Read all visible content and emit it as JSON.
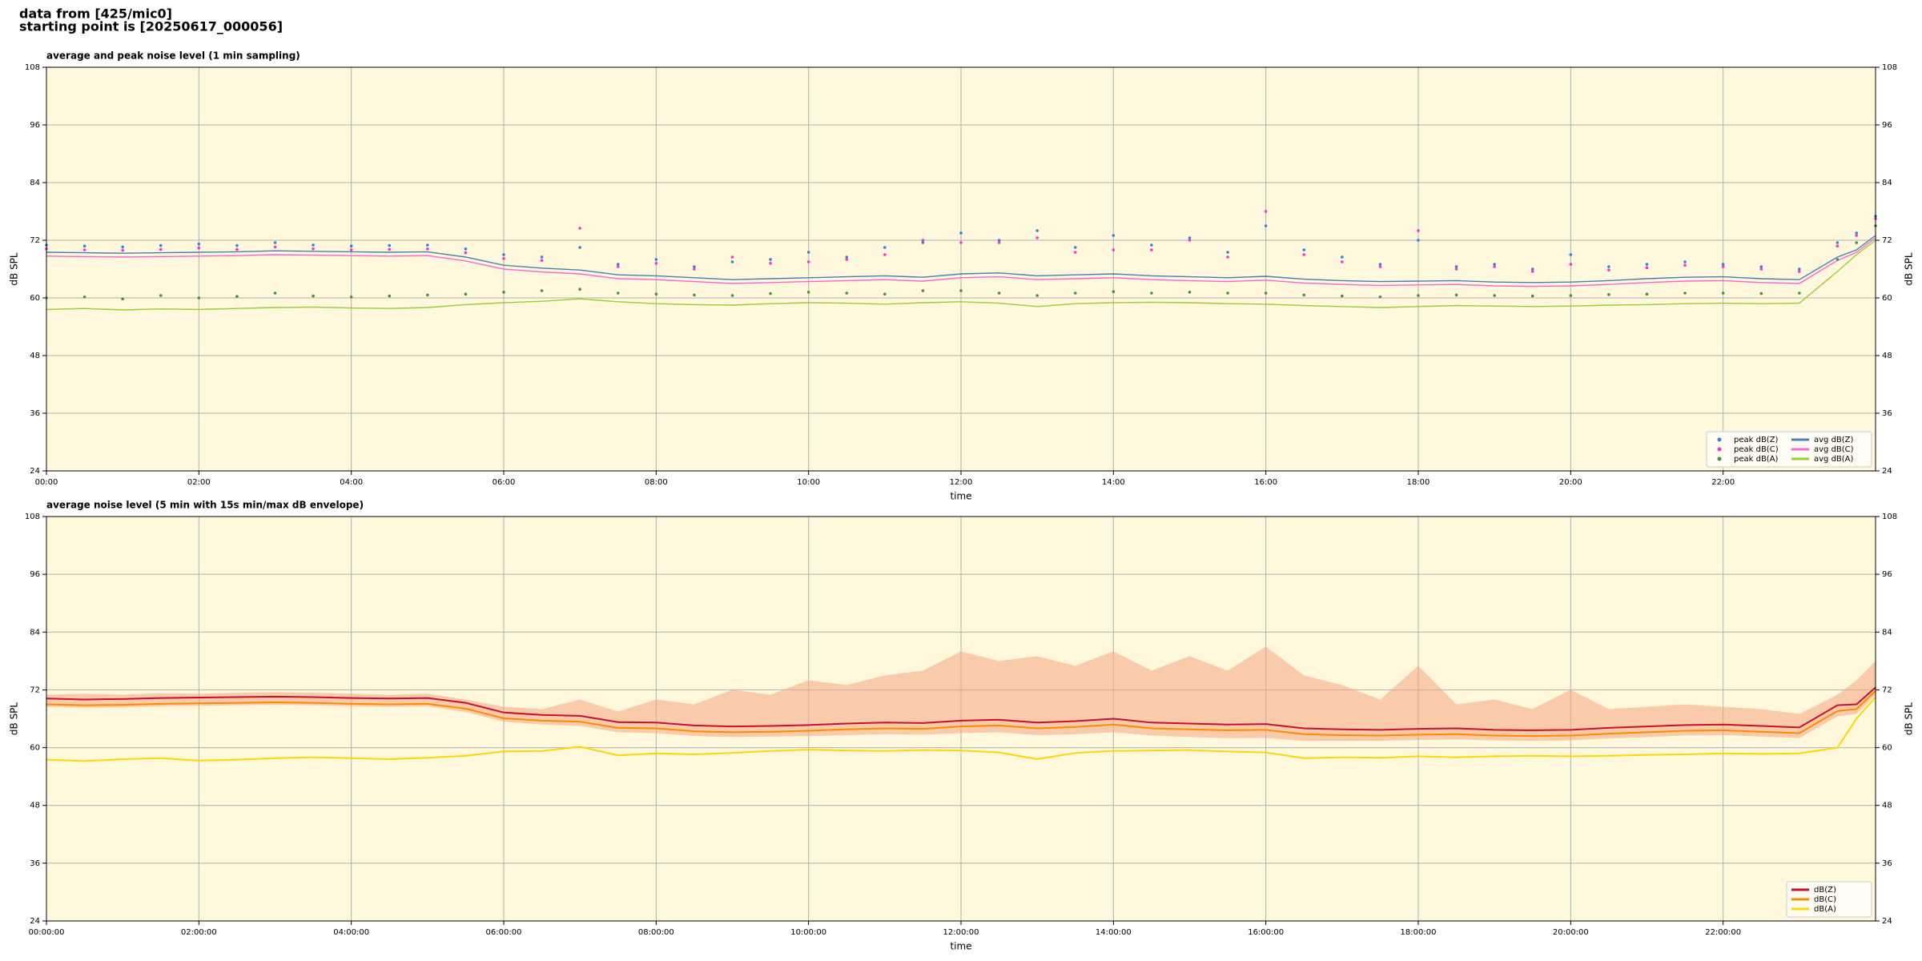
{
  "header": {
    "lines": [
      "data from [425/mic0]",
      "starting point is [20250617_000056]"
    ]
  },
  "chart_data": [
    {
      "type": "line",
      "title": "average and peak noise level (1 min sampling)",
      "xlabel": "time",
      "ylabel": "dB SPL",
      "xlim": [
        0,
        24
      ],
      "ylim": [
        24,
        108
      ],
      "xticks": [
        {
          "value": 0,
          "label": "00:00"
        },
        {
          "value": 2,
          "label": "02:00"
        },
        {
          "value": 4,
          "label": "04:00"
        },
        {
          "value": 6,
          "label": "06:00"
        },
        {
          "value": 8,
          "label": "08:00"
        },
        {
          "value": 10,
          "label": "10:00"
        },
        {
          "value": 12,
          "label": "12:00"
        },
        {
          "value": 14,
          "label": "14:00"
        },
        {
          "value": 16,
          "label": "16:00"
        },
        {
          "value": 18,
          "label": "18:00"
        },
        {
          "value": 20,
          "label": "20:00"
        },
        {
          "value": 22,
          "label": "22:00"
        }
      ],
      "yticks": [
        24,
        36,
        48,
        60,
        72,
        84,
        96,
        108
      ],
      "grid": true,
      "legend": "lower right",
      "legend_columns": 2,
      "background": "#fff8dc",
      "x": [
        0,
        0.5,
        1,
        1.5,
        2,
        2.5,
        3,
        3.5,
        4,
        4.5,
        5,
        5.5,
        6,
        6.5,
        7,
        7.5,
        8,
        8.5,
        9,
        9.5,
        10,
        10.5,
        11,
        11.5,
        12,
        12.5,
        13,
        13.5,
        14,
        14.5,
        15,
        15.5,
        16,
        16.5,
        17,
        17.5,
        18,
        18.5,
        19,
        19.5,
        20,
        20.5,
        21,
        21.5,
        22,
        22.5,
        23,
        23.5,
        23.75,
        24
      ],
      "series": [
        {
          "name": "peak dB(Z)",
          "color": "#3a7fd5",
          "style": "dots",
          "values": [
            71.0,
            70.8,
            70.6,
            70.9,
            71.2,
            70.9,
            71.5,
            71.0,
            70.8,
            70.9,
            71.0,
            70.2,
            69.0,
            68.5,
            70.5,
            67.0,
            68.0,
            66.5,
            67.5,
            68.0,
            69.5,
            68.5,
            70.5,
            71.5,
            73.5,
            72.0,
            74.0,
            70.5,
            73.0,
            71.0,
            72.5,
            69.5,
            75.0,
            70.0,
            68.5,
            67.0,
            72.0,
            66.5,
            67.0,
            66.0,
            69.0,
            66.5,
            67.0,
            67.5,
            67.0,
            66.5,
            66.0,
            71.5,
            73.5,
            77.0
          ]
        },
        {
          "name": "peak dB(C)",
          "color": "#ff33cc",
          "style": "dots",
          "values": [
            70.2,
            70.0,
            69.9,
            70.1,
            70.4,
            70.1,
            70.6,
            70.2,
            70.0,
            70.1,
            70.2,
            69.4,
            68.2,
            67.8,
            74.5,
            66.5,
            67.2,
            66.0,
            68.5,
            67.2,
            67.5,
            68.0,
            69.0,
            72.0,
            71.5,
            71.5,
            72.5,
            69.5,
            70.0,
            70.0,
            72.0,
            68.5,
            78.0,
            69.0,
            67.5,
            66.5,
            74.0,
            66.0,
            66.5,
            65.5,
            67.0,
            65.8,
            66.3,
            66.8,
            66.5,
            66.0,
            65.5,
            70.8,
            73.0,
            76.5
          ]
        },
        {
          "name": "peak dB(A)",
          "color": "#4f8f3a",
          "style": "dots",
          "values": [
            60.0,
            60.2,
            59.8,
            60.5,
            60.0,
            60.3,
            61.0,
            60.4,
            60.2,
            60.4,
            60.6,
            60.8,
            61.2,
            61.5,
            61.8,
            61.0,
            60.8,
            60.6,
            60.5,
            60.9,
            61.2,
            61.0,
            60.8,
            61.5,
            61.5,
            61.0,
            60.5,
            61.0,
            61.3,
            61.0,
            61.2,
            61.0,
            61.0,
            60.6,
            60.4,
            60.2,
            60.5,
            60.6,
            60.5,
            60.4,
            60.5,
            60.7,
            60.8,
            61.0,
            61.0,
            60.9,
            61.0,
            68.0,
            71.5,
            75.0
          ]
        },
        {
          "name": "avg dB(Z)",
          "color": "#4a7fb0",
          "style": "line",
          "values": [
            69.5,
            69.4,
            69.3,
            69.4,
            69.5,
            69.6,
            69.8,
            69.7,
            69.6,
            69.5,
            69.6,
            68.5,
            66.8,
            66.2,
            65.8,
            64.8,
            64.6,
            64.2,
            63.8,
            64.0,
            64.2,
            64.4,
            64.6,
            64.3,
            65.0,
            65.2,
            64.6,
            64.8,
            65.0,
            64.6,
            64.4,
            64.2,
            64.5,
            63.9,
            63.6,
            63.4,
            63.5,
            63.6,
            63.3,
            63.2,
            63.3,
            63.6,
            64.0,
            64.3,
            64.4,
            64.0,
            63.8,
            68.5,
            70.0,
            73.0
          ]
        },
        {
          "name": "avg dB(C)",
          "color": "#ff66cc",
          "style": "line",
          "values": [
            68.7,
            68.6,
            68.5,
            68.6,
            68.7,
            68.8,
            69.0,
            68.9,
            68.8,
            68.7,
            68.8,
            67.7,
            66.0,
            65.4,
            65.0,
            64.0,
            63.8,
            63.4,
            63.0,
            63.2,
            63.4,
            63.6,
            63.8,
            63.5,
            64.2,
            64.4,
            63.8,
            64.0,
            64.2,
            63.8,
            63.6,
            63.4,
            63.7,
            63.1,
            62.8,
            62.6,
            62.7,
            62.8,
            62.5,
            62.4,
            62.5,
            62.8,
            63.2,
            63.5,
            63.6,
            63.2,
            63.0,
            67.8,
            69.5,
            72.5
          ]
        },
        {
          "name": "avg dB(A)",
          "color": "#9acd32",
          "style": "line",
          "values": [
            57.6,
            57.8,
            57.5,
            57.7,
            57.6,
            57.8,
            58.0,
            58.1,
            57.9,
            57.8,
            58.0,
            58.6,
            59.0,
            59.3,
            59.8,
            59.2,
            58.8,
            58.6,
            58.5,
            58.8,
            59.0,
            58.9,
            58.7,
            59.0,
            59.2,
            58.9,
            58.2,
            58.8,
            59.0,
            59.1,
            59.0,
            58.8,
            58.7,
            58.4,
            58.2,
            58.0,
            58.2,
            58.4,
            58.3,
            58.2,
            58.3,
            58.5,
            58.6,
            58.8,
            58.9,
            58.8,
            58.9,
            65.5,
            69.0,
            72.0
          ]
        }
      ]
    },
    {
      "type": "line",
      "title": "average noise level (5 min with 15s min/max dB envelope)",
      "xlabel": "time",
      "ylabel": "dB SPL",
      "xlim": [
        0,
        24
      ],
      "ylim": [
        24,
        108
      ],
      "xticks": [
        {
          "value": 0,
          "label": "00:00:00"
        },
        {
          "value": 2,
          "label": "02:00:00"
        },
        {
          "value": 4,
          "label": "04:00:00"
        },
        {
          "value": 6,
          "label": "06:00:00"
        },
        {
          "value": 8,
          "label": "08:00:00"
        },
        {
          "value": 10,
          "label": "10:00:00"
        },
        {
          "value": 12,
          "label": "12:00:00"
        },
        {
          "value": 14,
          "label": "14:00:00"
        },
        {
          "value": 16,
          "label": "16:00:00"
        },
        {
          "value": 18,
          "label": "18:00:00"
        },
        {
          "value": 20,
          "label": "20:00:00"
        },
        {
          "value": 22,
          "label": "22:00:00"
        }
      ],
      "yticks": [
        24,
        36,
        48,
        60,
        72,
        84,
        96,
        108
      ],
      "grid": true,
      "legend": "lower right",
      "legend_columns": 1,
      "background": "#fff8dc",
      "x": [
        0,
        0.5,
        1,
        1.5,
        2,
        2.5,
        3,
        3.5,
        4,
        4.5,
        5,
        5.5,
        6,
        6.5,
        7,
        7.5,
        8,
        8.5,
        9,
        9.5,
        10,
        10.5,
        11,
        11.5,
        12,
        12.5,
        13,
        13.5,
        14,
        14.5,
        15,
        15.5,
        16,
        16.5,
        17,
        17.5,
        18,
        18.5,
        19,
        19.5,
        20,
        20.5,
        21,
        21.5,
        22,
        22.5,
        23,
        23.5,
        23.75,
        24
      ],
      "envelope": {
        "color": "#f4a582",
        "low": [
          68.5,
          68.3,
          68.4,
          68.6,
          68.7,
          68.8,
          68.9,
          68.8,
          68.6,
          68.5,
          68.6,
          67.4,
          65.4,
          64.8,
          64.5,
          63.2,
          63.0,
          62.4,
          62.2,
          62.3,
          62.4,
          62.6,
          62.8,
          62.7,
          63.0,
          63.2,
          62.6,
          62.8,
          63.2,
          62.5,
          62.2,
          62.0,
          62.0,
          61.4,
          61.4,
          61.4,
          61.6,
          61.7,
          61.5,
          61.4,
          61.5,
          61.9,
          62.2,
          62.5,
          62.6,
          62.3,
          62.0,
          66.5,
          67.0,
          71.0
        ],
        "high": [
          71.0,
          71.2,
          71.0,
          71.3,
          71.2,
          71.4,
          71.5,
          71.4,
          71.2,
          71.0,
          71.2,
          70.0,
          68.5,
          68.0,
          70.0,
          67.5,
          70.0,
          69.0,
          72.0,
          71.0,
          74.0,
          73.0,
          75.0,
          76.0,
          80.0,
          78.0,
          79.0,
          77.0,
          80.0,
          76.0,
          79.0,
          76.0,
          81.0,
          75.0,
          73.0,
          70.0,
          77.0,
          69.0,
          70.0,
          68.0,
          72.0,
          68.0,
          68.5,
          69.0,
          68.5,
          68.0,
          67.0,
          71.0,
          74.0,
          78.0
        ]
      },
      "series": [
        {
          "name": "dB(Z)",
          "color": "#c8102e",
          "style": "line",
          "values": [
            70.2,
            70.0,
            70.1,
            70.3,
            70.4,
            70.5,
            70.6,
            70.5,
            70.3,
            70.2,
            70.3,
            69.3,
            67.3,
            66.8,
            66.6,
            65.3,
            65.2,
            64.6,
            64.4,
            64.5,
            64.7,
            65.0,
            65.2,
            65.1,
            65.6,
            65.8,
            65.2,
            65.5,
            66.0,
            65.2,
            65.0,
            64.8,
            64.9,
            64.0,
            63.8,
            63.7,
            63.9,
            64.0,
            63.7,
            63.6,
            63.7,
            64.1,
            64.4,
            64.7,
            64.8,
            64.5,
            64.2,
            68.8,
            69.0,
            72.5
          ]
        },
        {
          "name": "dB(C)",
          "color": "#ff8c00",
          "style": "line",
          "values": [
            69.0,
            68.8,
            68.9,
            69.1,
            69.2,
            69.3,
            69.4,
            69.3,
            69.1,
            69.0,
            69.1,
            68.1,
            66.1,
            65.6,
            65.4,
            64.1,
            64.0,
            63.4,
            63.2,
            63.3,
            63.5,
            63.8,
            64.0,
            63.9,
            64.4,
            64.6,
            64.0,
            64.3,
            64.8,
            64.0,
            63.8,
            63.6,
            63.7,
            62.8,
            62.6,
            62.5,
            62.7,
            62.8,
            62.5,
            62.4,
            62.5,
            62.9,
            63.2,
            63.5,
            63.6,
            63.3,
            63.0,
            67.6,
            68.0,
            71.8
          ]
        },
        {
          "name": "dB(A)",
          "color": "#ffd700",
          "style": "line",
          "values": [
            57.5,
            57.2,
            57.6,
            57.8,
            57.3,
            57.5,
            57.8,
            58.0,
            57.8,
            57.6,
            57.9,
            58.3,
            59.2,
            59.3,
            60.2,
            58.4,
            58.8,
            58.6,
            58.9,
            59.3,
            59.6,
            59.4,
            59.3,
            59.5,
            59.4,
            59.0,
            57.6,
            58.9,
            59.3,
            59.4,
            59.5,
            59.2,
            59.0,
            57.8,
            58.0,
            57.9,
            58.2,
            58.0,
            58.2,
            58.3,
            58.2,
            58.3,
            58.5,
            58.6,
            58.8,
            58.7,
            58.8,
            60.0,
            66.0,
            70.5
          ]
        }
      ]
    }
  ]
}
